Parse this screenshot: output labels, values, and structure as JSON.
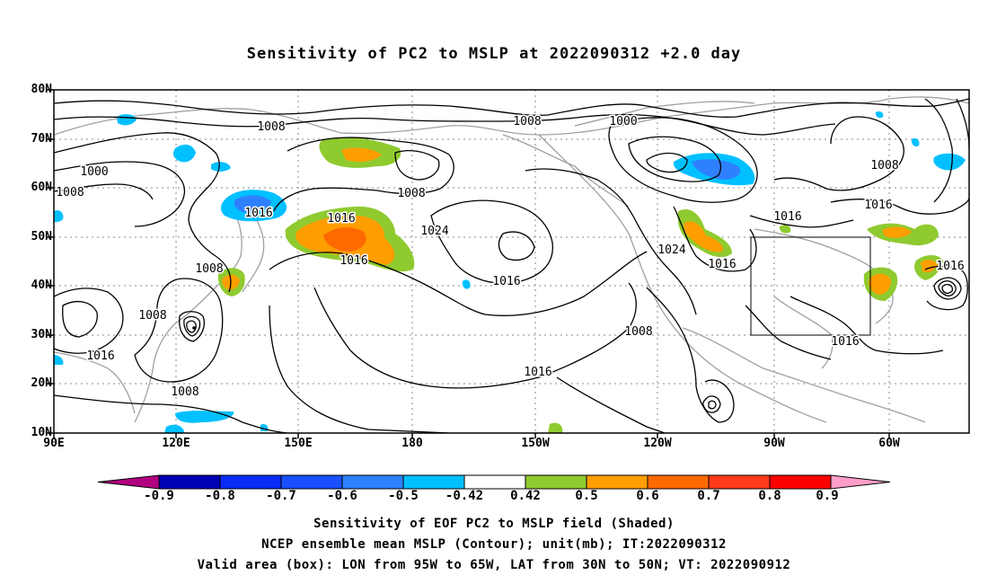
{
  "title": "Sensitivity of PC2 to MSLP at 2022090312 +2.0 day",
  "lat_ticks": [
    "80N",
    "70N",
    "60N",
    "50N",
    "40N",
    "30N",
    "20N",
    "10N"
  ],
  "lon_ticks": [
    "90E",
    "120E",
    "150E",
    "180",
    "150W",
    "120W",
    "90W",
    "60W"
  ],
  "contour_labels": [
    "1008",
    "1008",
    "1000",
    "1008",
    "1000",
    "1008",
    "1008",
    "1016",
    "1016",
    "1024",
    "1016",
    "1024",
    "1016",
    "1016",
    "1008",
    "1008",
    "1016",
    "1016",
    "1016",
    "1008",
    "1016",
    "1008",
    "1016",
    "1016"
  ],
  "colorbar": {
    "labels": [
      "-0.9",
      "-0.8",
      "-0.7",
      "-0.6",
      "-0.5",
      "-0.42",
      "0.42",
      "0.5",
      "0.6",
      "0.7",
      "0.8",
      "0.9"
    ],
    "colors": [
      "#b0007f",
      "#0000b4",
      "#0a2bf5",
      "#1a4fff",
      "#2f80ff",
      "#00c0ff",
      "#ffffff",
      "#8fca2f",
      "#ff9e00",
      "#ff6a00",
      "#ff3a1a",
      "#ff0000",
      "#ff9ec8"
    ]
  },
  "valid_box": {
    "lon_range": "95W to 65W",
    "lat_range": "30N to 50N"
  },
  "captions": {
    "line1": "Sensitivity of EOF PC2 to MSLP field (Shaded)",
    "line2": "NCEP ensemble mean MSLP (Contour); unit(mb); IT:2022090312",
    "line3": "Valid area (box): LON from 95W to 65W, LAT from 30N to 50N; VT: 2022090912"
  }
}
